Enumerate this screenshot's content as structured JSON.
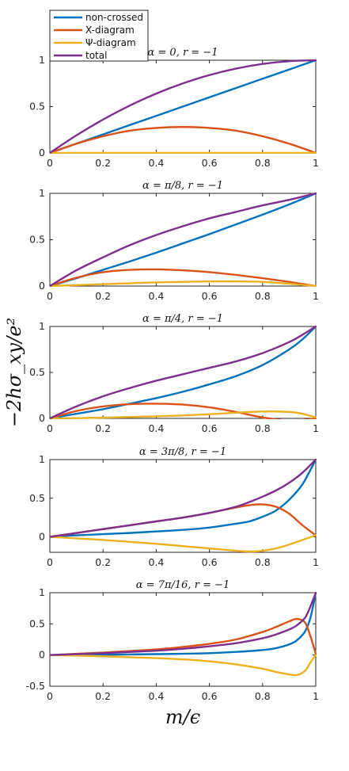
{
  "figure": {
    "ylabel": "−2hσ_xy/e²",
    "xlabel": "m/ϵ"
  },
  "legend": {
    "placement": "top-left",
    "entries": [
      {
        "name": "non-crossed",
        "color": "#0072BD"
      },
      {
        "name": "X-diagram",
        "color": "#D95319"
      },
      {
        "name": "Ψ-diagram",
        "color": "#EDB120"
      },
      {
        "name": "total",
        "color": "#7E2F8E"
      }
    ]
  },
  "chart_data": [
    {
      "type": "line",
      "title": "α = 0, r = −1",
      "xlim": [
        0,
        1
      ],
      "ylim": [
        0,
        1
      ],
      "xticks": [
        "0",
        "0.2",
        "0.4",
        "0.6",
        "0.8",
        "1"
      ],
      "yticks": [
        "0",
        "0.5",
        "1"
      ],
      "ytick_values": [
        0,
        0.5,
        1
      ],
      "x": [
        0,
        0.1,
        0.2,
        0.3,
        0.4,
        0.5,
        0.6,
        0.7,
        0.8,
        0.9,
        1.0
      ],
      "series": [
        {
          "name": "non-crossed",
          "values": [
            0,
            0.1,
            0.2,
            0.3,
            0.4,
            0.5,
            0.6,
            0.7,
            0.8,
            0.9,
            1.0
          ]
        },
        {
          "name": "X-diagram",
          "values": [
            0,
            0.1,
            0.18,
            0.24,
            0.27,
            0.28,
            0.27,
            0.24,
            0.18,
            0.1,
            0
          ]
        },
        {
          "name": "Ψ-diagram",
          "values": [
            0,
            0,
            0,
            0,
            0,
            0,
            0,
            0,
            0,
            0,
            0
          ]
        },
        {
          "name": "total",
          "values": [
            0,
            0.19,
            0.36,
            0.51,
            0.64,
            0.75,
            0.84,
            0.91,
            0.96,
            0.99,
            1.0
          ]
        }
      ]
    },
    {
      "type": "line",
      "title": "α = π/8, r = −1",
      "xlim": [
        0,
        1
      ],
      "ylim": [
        0,
        1
      ],
      "xticks": [
        "0",
        "0.2",
        "0.4",
        "0.6",
        "0.8",
        "1"
      ],
      "yticks": [
        "0",
        "0.5",
        "1"
      ],
      "ytick_values": [
        0,
        0.5,
        1
      ],
      "x": [
        0,
        0.1,
        0.2,
        0.3,
        0.4,
        0.5,
        0.6,
        0.7,
        0.8,
        0.9,
        1.0
      ],
      "series": [
        {
          "name": "non-crossed",
          "values": [
            0,
            0.085,
            0.175,
            0.265,
            0.36,
            0.46,
            0.56,
            0.665,
            0.77,
            0.88,
            1.0
          ]
        },
        {
          "name": "X-diagram",
          "values": [
            0,
            0.09,
            0.15,
            0.175,
            0.18,
            0.17,
            0.15,
            0.12,
            0.085,
            0.045,
            0
          ]
        },
        {
          "name": "Ψ-diagram",
          "values": [
            0,
            0.01,
            0.02,
            0.03,
            0.04,
            0.045,
            0.05,
            0.05,
            0.045,
            0.025,
            0
          ]
        },
        {
          "name": "total",
          "values": [
            0,
            0.17,
            0.31,
            0.44,
            0.55,
            0.645,
            0.73,
            0.8,
            0.87,
            0.93,
            1.0
          ]
        }
      ]
    },
    {
      "type": "line",
      "title": "α = π/4, r = −1",
      "xlim": [
        0,
        1
      ],
      "ylim": [
        0,
        1
      ],
      "xticks": [
        "0",
        "0.2",
        "0.4",
        "0.6",
        "0.8",
        "1"
      ],
      "yticks": [
        "0",
        "0.5",
        "1"
      ],
      "ytick_values": [
        0,
        0.5,
        1
      ],
      "x": [
        0,
        0.1,
        0.2,
        0.3,
        0.4,
        0.5,
        0.6,
        0.7,
        0.8,
        0.9,
        0.95,
        1.0
      ],
      "series": [
        {
          "name": "non-crossed",
          "values": [
            0,
            0.05,
            0.1,
            0.16,
            0.22,
            0.29,
            0.37,
            0.46,
            0.58,
            0.75,
            0.86,
            1.0
          ]
        },
        {
          "name": "X-diagram",
          "values": [
            0,
            0.08,
            0.13,
            0.155,
            0.16,
            0.15,
            0.12,
            0.07,
            0.01,
            -0.025,
            -0.02,
            0
          ]
        },
        {
          "name": "Ψ-diagram",
          "values": [
            0,
            0.003,
            0.008,
            0.015,
            0.022,
            0.032,
            0.045,
            0.062,
            0.075,
            0.07,
            0.05,
            0.01
          ]
        },
        {
          "name": "total",
          "values": [
            0,
            0.13,
            0.24,
            0.33,
            0.41,
            0.48,
            0.55,
            0.62,
            0.71,
            0.83,
            0.91,
            1.0
          ]
        }
      ]
    },
    {
      "type": "line",
      "title": "α = 3π/8, r = −1",
      "xlim": [
        0,
        1
      ],
      "ylim": [
        -0.2,
        1
      ],
      "xticks": [
        "0",
        "0.2",
        "0.4",
        "0.6",
        "0.8",
        "1"
      ],
      "yticks": [
        "0",
        "0.5",
        "1"
      ],
      "ytick_values": [
        0,
        0.5,
        1
      ],
      "x": [
        0,
        0.1,
        0.2,
        0.3,
        0.4,
        0.5,
        0.6,
        0.7,
        0.75,
        0.8,
        0.85,
        0.9,
        0.95,
        1.0
      ],
      "series": [
        {
          "name": "non-crossed",
          "values": [
            0,
            0.02,
            0.035,
            0.05,
            0.07,
            0.09,
            0.12,
            0.17,
            0.2,
            0.26,
            0.34,
            0.48,
            0.68,
            1.0
          ]
        },
        {
          "name": "X-diagram",
          "values": [
            0,
            0.05,
            0.1,
            0.15,
            0.2,
            0.25,
            0.31,
            0.38,
            0.41,
            0.42,
            0.39,
            0.3,
            0.15,
            0.02
          ]
        },
        {
          "name": "Ψ-diagram",
          "values": [
            0,
            -0.02,
            -0.04,
            -0.065,
            -0.09,
            -0.12,
            -0.15,
            -0.18,
            -0.19,
            -0.18,
            -0.15,
            -0.1,
            -0.04,
            0.02
          ]
        },
        {
          "name": "total",
          "values": [
            0,
            0.05,
            0.1,
            0.15,
            0.2,
            0.25,
            0.31,
            0.39,
            0.45,
            0.52,
            0.6,
            0.7,
            0.83,
            1.0
          ]
        }
      ]
    },
    {
      "type": "line",
      "title": "α = 7π/16, r = −1",
      "xlim": [
        0,
        1
      ],
      "ylim": [
        -0.5,
        1
      ],
      "xticks": [
        "0",
        "0.2",
        "0.4",
        "0.6",
        "0.8",
        "1"
      ],
      "yticks": [
        "-0.5",
        "0",
        "0.5",
        "1"
      ],
      "ytick_values": [
        -0.5,
        0,
        0.5,
        1
      ],
      "x": [
        0,
        0.1,
        0.2,
        0.3,
        0.4,
        0.5,
        0.6,
        0.7,
        0.8,
        0.85,
        0.9,
        0.93,
        0.96,
        0.98,
        1.0
      ],
      "series": [
        {
          "name": "non-crossed",
          "values": [
            0,
            0.002,
            0.005,
            0.01,
            0.015,
            0.02,
            0.03,
            0.05,
            0.08,
            0.11,
            0.17,
            0.24,
            0.38,
            0.6,
            1.0
          ]
        },
        {
          "name": "X-diagram",
          "values": [
            0,
            0.02,
            0.04,
            0.065,
            0.09,
            0.13,
            0.18,
            0.25,
            0.37,
            0.45,
            0.54,
            0.58,
            0.52,
            0.3,
            0.02
          ]
        },
        {
          "name": "Ψ-diagram",
          "values": [
            0,
            -0.01,
            -0.02,
            -0.035,
            -0.05,
            -0.07,
            -0.1,
            -0.15,
            -0.22,
            -0.27,
            -0.31,
            -0.32,
            -0.25,
            -0.12,
            0.0
          ]
        },
        {
          "name": "total",
          "values": [
            0,
            0.015,
            0.03,
            0.05,
            0.07,
            0.1,
            0.14,
            0.19,
            0.27,
            0.33,
            0.41,
            0.48,
            0.6,
            0.78,
            1.0
          ]
        }
      ]
    }
  ]
}
